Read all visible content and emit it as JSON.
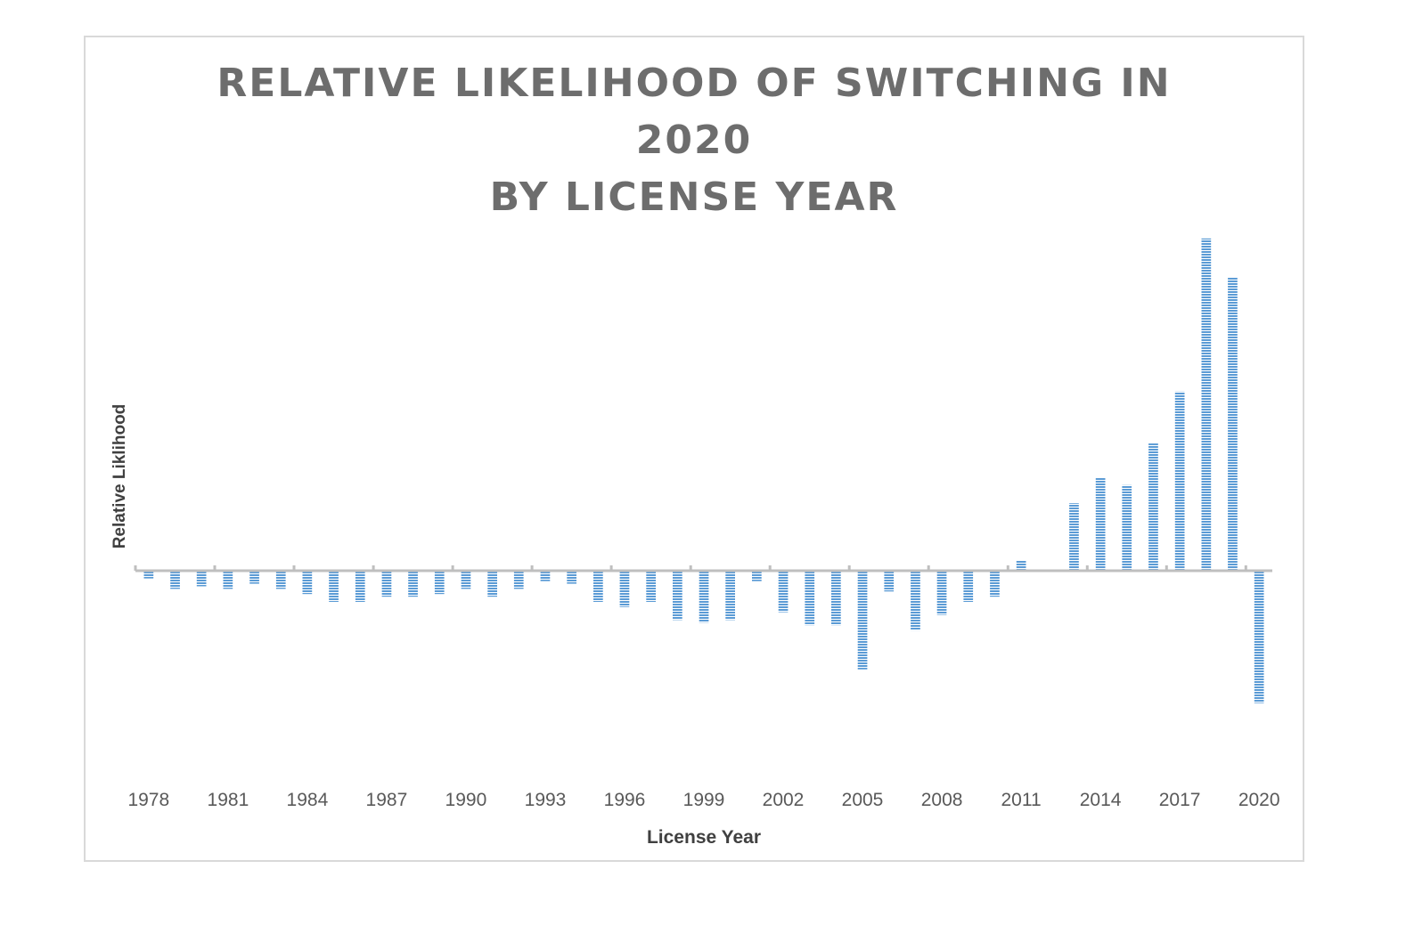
{
  "chart_data": {
    "type": "bar",
    "title_lines": [
      "RELATIVE LIKELIHOOD OF SWITCHING IN",
      "2020",
      "BY LICENSE YEAR"
    ],
    "xlabel": "License Year",
    "ylabel": "Relative Liklihood",
    "categories": [
      "1978",
      "1979",
      "1980",
      "1981",
      "1982",
      "1983",
      "1984",
      "1985",
      "1986",
      "1987",
      "1988",
      "1989",
      "1990",
      "1991",
      "1992",
      "1993",
      "1994",
      "1995",
      "1996",
      "1997",
      "1998",
      "1999",
      "2000",
      "2001",
      "2002",
      "2003",
      "2004",
      "2005",
      "2006",
      "2007",
      "2008",
      "2009",
      "2010",
      "2011",
      "2012",
      "2013",
      "2014",
      "2015",
      "2016",
      "2017",
      "2018",
      "2019",
      "2020"
    ],
    "tick_labels": [
      "1978",
      "1981",
      "1984",
      "1987",
      "1990",
      "1993",
      "1996",
      "1999",
      "2002",
      "2005",
      "2008",
      "2011",
      "2014",
      "2017",
      "2020"
    ],
    "values": [
      -0.03,
      -0.07,
      -0.06,
      -0.07,
      -0.05,
      -0.07,
      -0.09,
      -0.12,
      -0.12,
      -0.1,
      -0.1,
      -0.09,
      -0.07,
      -0.1,
      -0.07,
      -0.04,
      -0.05,
      -0.12,
      -0.14,
      -0.12,
      -0.19,
      -0.2,
      -0.19,
      -0.04,
      -0.16,
      -0.21,
      -0.21,
      -0.38,
      -0.08,
      -0.23,
      -0.17,
      -0.12,
      -0.1,
      0.04,
      0.0,
      0.26,
      0.36,
      0.33,
      0.49,
      0.69,
      1.28,
      1.13,
      -0.51
    ],
    "ylim": [
      -0.8,
      1.3
    ],
    "grid": false,
    "legend": "none",
    "bar_color": "#5b9bd5"
  }
}
